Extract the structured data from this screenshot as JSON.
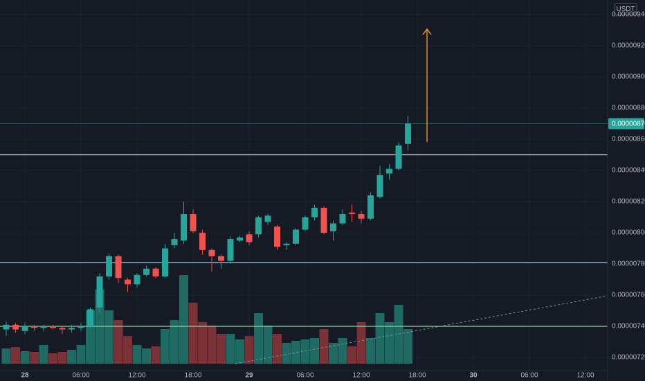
{
  "chart_data": {
    "type": "candlestick",
    "currency": "USDT",
    "x": [
      -2,
      -1,
      0,
      1,
      2,
      3,
      4,
      5,
      6,
      7,
      8,
      9,
      10,
      11,
      12,
      13,
      14,
      15,
      16,
      17,
      18,
      19,
      20,
      21,
      22,
      23,
      24,
      25,
      26,
      27,
      28,
      29,
      30,
      31,
      32,
      33,
      34,
      35,
      36,
      37,
      38,
      39,
      40,
      41
    ],
    "open": [
      7.38e-06,
      7.41e-06,
      7.37e-06,
      7.4e-06,
      7.39e-06,
      7.4e-06,
      7.39e-06,
      7.38e-06,
      7.39e-06,
      7.4e-06,
      7.52e-06,
      7.72e-06,
      7.85e-06,
      7.7e-06,
      7.67e-06,
      7.73e-06,
      7.77e-06,
      7.72e-06,
      7.92e-06,
      7.95e-06,
      8.12e-06,
      8e-06,
      7.89e-06,
      7.85e-06,
      7.82e-06,
      7.95e-06,
      7.99e-06,
      7.99e-06,
      8.07e-06,
      8.04e-06,
      7.92e-06,
      7.93e-06,
      8.02e-06,
      8.1e-06,
      8.16e-06,
      8.01e-06,
      8.06e-06,
      8.13e-06,
      8.12e-06,
      8.09e-06,
      8.23e-06,
      8.38e-06,
      8.41e-06,
      8.57e-06
    ],
    "high": [
      7.43e-06,
      7.42e-06,
      7.42e-06,
      7.41e-06,
      7.41e-06,
      7.41e-06,
      7.4e-06,
      7.41e-06,
      7.42e-06,
      7.52e-06,
      7.74e-06,
      7.87e-06,
      7.86e-06,
      7.71e-06,
      7.74e-06,
      7.79e-06,
      7.78e-06,
      7.93e-06,
      8e-06,
      8.2e-06,
      8.15e-06,
      8.02e-06,
      7.9e-06,
      7.86e-06,
      7.98e-06,
      7.98e-06,
      8.01e-06,
      8.11e-06,
      8.12e-06,
      8.05e-06,
      7.94e-06,
      8.03e-06,
      8.11e-06,
      8.18e-06,
      8.17e-06,
      8.08e-06,
      8.15e-06,
      8.18e-06,
      8.14e-06,
      8.26e-06,
      8.43e-06,
      8.44e-06,
      8.58e-06,
      8.75e-06
    ],
    "low": [
      7.34e-06,
      7.36e-06,
      7.35e-06,
      7.37e-06,
      7.37e-06,
      7.38e-06,
      7.35e-06,
      7.36e-06,
      7.37e-06,
      7.39e-06,
      7.49e-06,
      7.7e-06,
      7.68e-06,
      7.62e-06,
      7.65e-06,
      7.72e-06,
      7.71e-06,
      7.71e-06,
      7.9e-06,
      7.93e-06,
      8e-06,
      7.86e-06,
      7.75e-06,
      7.77e-06,
      7.8e-06,
      7.94e-06,
      7.92e-06,
      7.97e-06,
      8.05e-06,
      7.89e-06,
      7.89e-06,
      7.92e-06,
      8.01e-06,
      8.08e-06,
      7.99e-06,
      7.95e-06,
      8.05e-06,
      8.07e-06,
      8.06e-06,
      8.08e-06,
      8.22e-06,
      8.34e-06,
      8.4e-06,
      8.53e-06
    ],
    "close": [
      7.41e-06,
      7.38e-06,
      7.4e-06,
      7.39e-06,
      7.4e-06,
      7.39e-06,
      7.38e-06,
      7.39e-06,
      7.4e-06,
      7.51e-06,
      7.72e-06,
      7.85e-06,
      7.71e-06,
      7.67e-06,
      7.73e-06,
      7.77e-06,
      7.72e-06,
      7.9e-06,
      7.96e-06,
      8.12e-06,
      8.01e-06,
      7.89e-06,
      7.85e-06,
      7.82e-06,
      7.96e-06,
      7.97e-06,
      7.94e-06,
      8.1e-06,
      8.11e-06,
      7.91e-06,
      7.93e-06,
      8.02e-06,
      8.1e-06,
      8.16e-06,
      8e-06,
      8.06e-06,
      8.12e-06,
      8.12e-06,
      8.09e-06,
      8.24e-06,
      8.37e-06,
      8.41e-06,
      8.56e-06,
      8.7e-06
    ],
    "volume": [
      22,
      24,
      18,
      17,
      27,
      15,
      17,
      20,
      27,
      77,
      107,
      77,
      63,
      40,
      27,
      22,
      25,
      50,
      63,
      128,
      88,
      60,
      55,
      43,
      43,
      35,
      40,
      73,
      55,
      43,
      30,
      33,
      35,
      37,
      50,
      30,
      37,
      25,
      60,
      37,
      73,
      60,
      85,
      50
    ],
    "xlim": [
      -2.67,
      62.37
    ],
    "ylim": [
      7.116e-06,
      9.493e-06
    ],
    "xticks": [
      {
        "value": 0,
        "label": "28"
      },
      {
        "value": 6,
        "label": "06:00"
      },
      {
        "value": 12,
        "label": "12:00"
      },
      {
        "value": 18,
        "label": "18:00"
      },
      {
        "value": 24,
        "label": "29"
      },
      {
        "value": 30,
        "label": "06:00"
      },
      {
        "value": 36,
        "label": "12:00"
      },
      {
        "value": 42,
        "label": "18:00"
      },
      {
        "value": 48,
        "label": "30"
      },
      {
        "value": 54,
        "label": "06:00"
      },
      {
        "value": 60,
        "label": "12:00"
      }
    ],
    "yticks": [
      {
        "value": 7.2e-06,
        "label": "0.00000720"
      },
      {
        "value": 7.4e-06,
        "label": "0.00000740"
      },
      {
        "value": 7.6e-06,
        "label": "0.00000760"
      },
      {
        "value": 7.8e-06,
        "label": "0.00000780"
      },
      {
        "value": 8e-06,
        "label": "0.00000800"
      },
      {
        "value": 8.2e-06,
        "label": "0.00000820"
      },
      {
        "value": 8.4e-06,
        "label": "0.00000840"
      },
      {
        "value": 8.6e-06,
        "label": "0.00000860"
      },
      {
        "value": 8.8e-06,
        "label": "0.00000880"
      },
      {
        "value": 9e-06,
        "label": "0.00000900"
      },
      {
        "value": 9.2e-06,
        "label": "0.00000920"
      },
      {
        "value": 9.4e-06,
        "label": "0.00000940"
      }
    ],
    "grid": true,
    "up_color": "#26a69a",
    "down_color": "#ef5350",
    "up_volume_color": "#1f6b64",
    "down_volume_color": "#7b3236",
    "lines": [
      {
        "value": 8.5e-06,
        "color": "#d8ece8"
      },
      {
        "value": 7.81e-06,
        "color": "#a9d8f0"
      },
      {
        "value": 7.4e-06,
        "color": "#8fd99a"
      }
    ],
    "last_price": {
      "value": 8.7e-06,
      "label": "0.00000870"
    }
  }
}
